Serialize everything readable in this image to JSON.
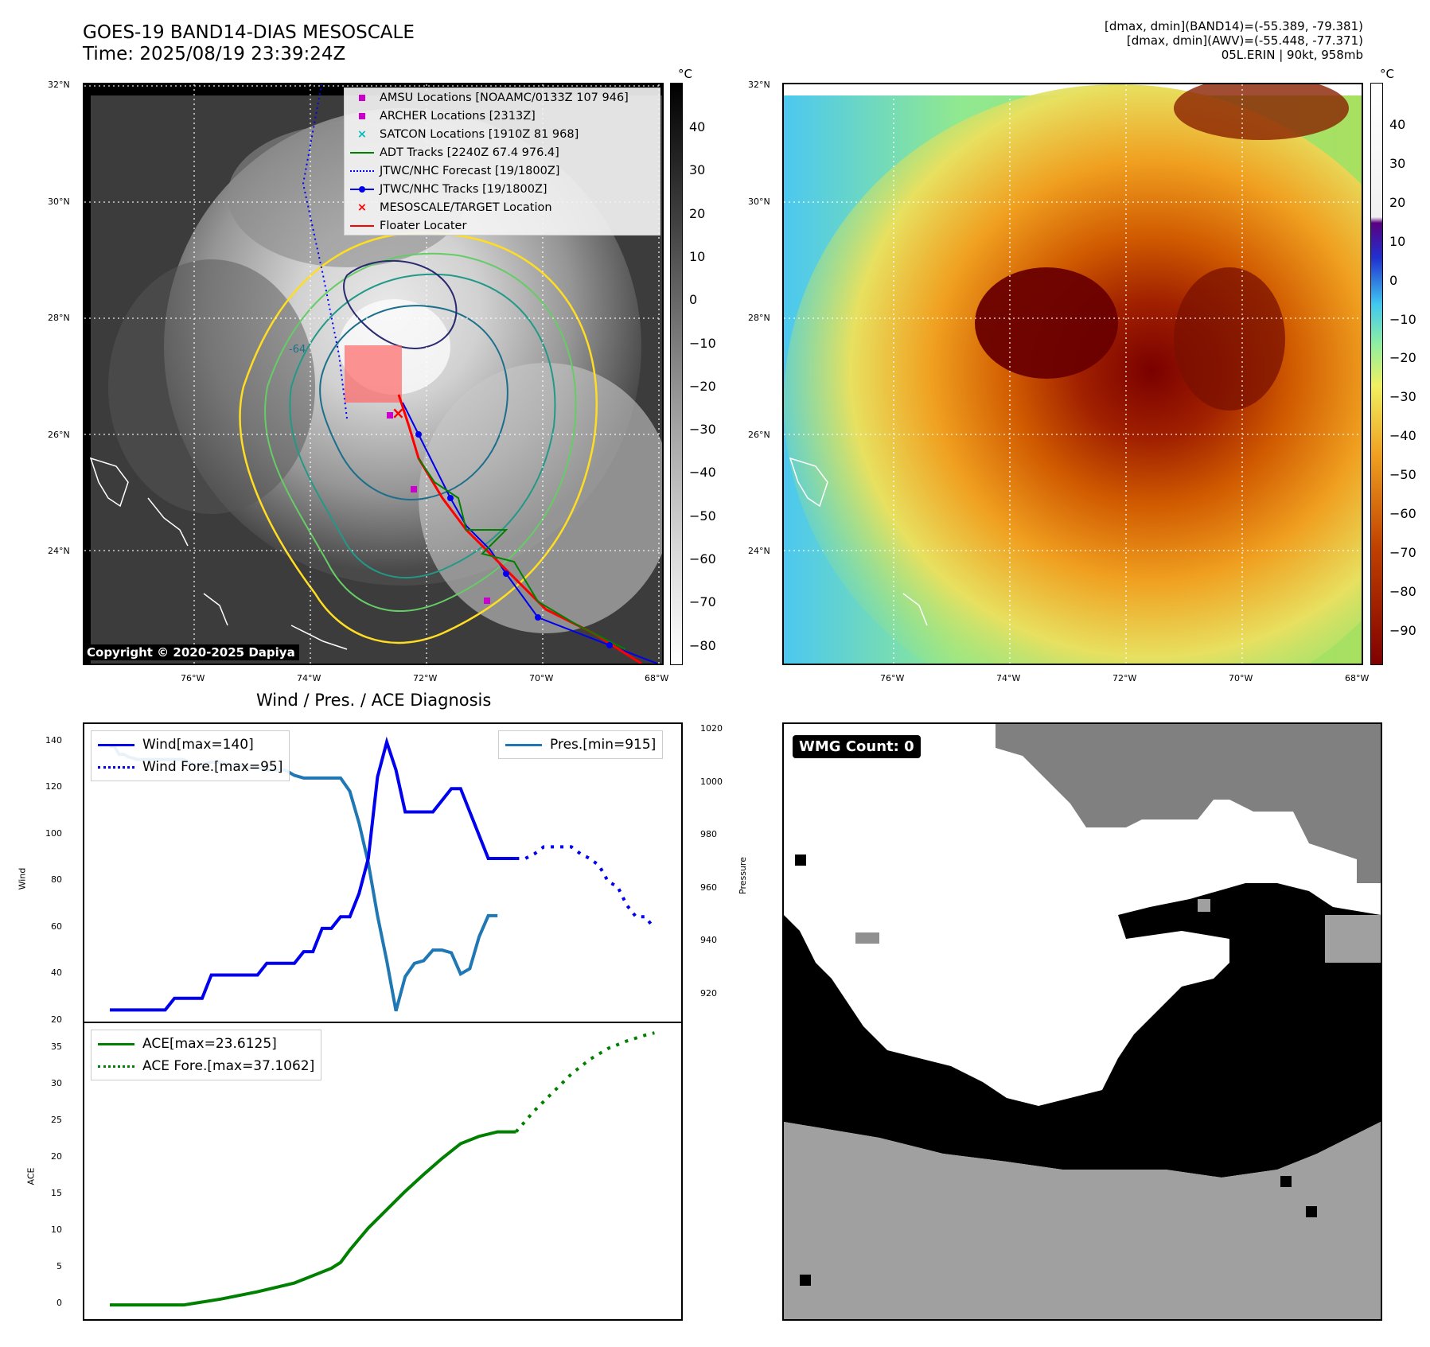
{
  "header": {
    "title_line1": "GOES-19 BAND14-DIAS MESOSCALE",
    "title_line2": "Time: 2025/08/19 23:39:24Z",
    "info_line1": "[dmax, dmin](BAND14)=(-55.389, -79.381)",
    "info_line2": "[dmax, dmin](AWV)=(-55.448, -77.371)",
    "info_line3": "05L.ERIN | 90kt, 958mb"
  },
  "map": {
    "lat_labels": [
      "32°N",
      "30°N",
      "28°N",
      "26°N",
      "24°N"
    ],
    "lon_labels": [
      "76°W",
      "74°W",
      "72°W",
      "70°W",
      "68°W"
    ],
    "copyright": "Copyright © 2020-2025 Dapiya",
    "contour_label": "-64"
  },
  "colorbar_left": {
    "unit": "°C",
    "ticks": [
      "40",
      "30",
      "20",
      "10",
      "0",
      "−10",
      "−20",
      "−30",
      "−40",
      "−50",
      "−60",
      "−70",
      "−80"
    ]
  },
  "colorbar_right": {
    "unit": "°C",
    "ticks": [
      "40",
      "30",
      "20",
      "10",
      "0",
      "−10",
      "−20",
      "−30",
      "−40",
      "−50",
      "−60",
      "−70",
      "−80",
      "−90"
    ]
  },
  "legend": {
    "amsu": "AMSU Locations [NOAAMC/0133Z 107 946]",
    "archer": "ARCHER Locations [2313Z]",
    "satcon": "SATCON Locations [1910Z 81 968]",
    "adt": "ADT Tracks [2240Z 67.4 976.4]",
    "forecast": "JTWC/NHC Forecast [19/1800Z]",
    "tracks": "JTWC/NHC Tracks [19/1800Z]",
    "target": "MESOSCALE/TARGET Location",
    "floater": "Floater Locater"
  },
  "colors": {
    "wind": "#0000ee",
    "pressure": "#1f77b4",
    "ace": "#008000",
    "target": "#ff0000",
    "amsu": "#cc00cc",
    "satcon": "#00bbbb"
  },
  "wmg": {
    "label": "WMG Count: 0"
  },
  "chart_data": [
    {
      "type": "line",
      "title": "Wind / Pres. / ACE Diagnosis",
      "ylabel": "Wind",
      "ylabel_right": "Pressure",
      "ylim": [
        20,
        145
      ],
      "ylim_right": [
        910,
        1020
      ],
      "yticks": [
        "140",
        "120",
        "100",
        "80",
        "60",
        "40",
        "20"
      ],
      "yticks_right": [
        "1020",
        "1000",
        "980",
        "960",
        "940",
        "920"
      ],
      "legend_wind": "Wind[max=140]",
      "legend_wind_fore": "Wind Fore.[max=95]",
      "legend_pres": "Pres.[min=915]",
      "series": [
        {
          "name": "Wind[max=140]",
          "axis": "left",
          "style": "solid",
          "x": [
            0,
            2,
            4,
            6,
            7,
            8,
            10,
            11,
            12,
            13,
            14,
            16,
            17,
            18,
            19,
            20,
            21,
            22,
            23,
            24,
            25,
            26,
            27,
            28,
            29,
            30,
            31,
            32,
            34,
            35,
            36,
            37,
            38,
            40,
            41,
            42,
            43,
            44
          ],
          "values": [
            25,
            25,
            25,
            25,
            30,
            30,
            30,
            40,
            40,
            40,
            40,
            40,
            45,
            45,
            45,
            45,
            50,
            50,
            60,
            60,
            65,
            65,
            75,
            90,
            125,
            140,
            128,
            110,
            110,
            110,
            115,
            120,
            120,
            100,
            90,
            90,
            90,
            90
          ]
        },
        {
          "name": "Wind Fore.[max=95]",
          "axis": "left",
          "style": "dotted",
          "x": [
            44,
            45,
            46,
            47,
            48,
            49,
            50,
            51,
            52,
            53,
            54,
            55,
            56,
            57,
            58,
            59
          ],
          "values": [
            90,
            90,
            92,
            95,
            95,
            95,
            95,
            92,
            90,
            87,
            80,
            78,
            70,
            65,
            65,
            60
          ]
        },
        {
          "name": "Pres.[min=915]",
          "axis": "right",
          "style": "solid",
          "x": [
            0,
            0.5,
            1,
            1.5,
            2,
            3,
            4,
            5,
            6,
            7,
            8,
            9,
            10,
            11,
            12,
            13,
            14,
            15,
            16,
            17,
            18,
            19,
            20,
            21,
            22,
            23,
            24,
            25,
            26,
            27,
            28,
            29,
            30,
            31,
            32,
            33,
            34,
            35,
            36,
            37,
            38,
            39,
            40,
            41,
            42
          ],
          "values": [
            1014,
            1014,
            1011,
            1011,
            1010,
            1009,
            1009,
            1009,
            1009,
            1009,
            1009,
            1007,
            1007,
            1008,
            1008,
            1007,
            1007,
            1006,
            1006,
            1005,
            1005,
            1005,
            1003,
            1002,
            1002,
            1002,
            1002,
            1002,
            997,
            985,
            970,
            950,
            933,
            914,
            927,
            932,
            933,
            937,
            937,
            936,
            928,
            930,
            942,
            950,
            950
          ]
        }
      ]
    },
    {
      "type": "line",
      "ylabel": "ACE",
      "ylim": [
        -1.5,
        38
      ],
      "yticks": [
        "35",
        "30",
        "25",
        "20",
        "15",
        "10",
        "5",
        "0"
      ],
      "legend_ace": "ACE[max=23.6125]",
      "legend_ace_fore": "ACE Fore.[max=37.1062]",
      "series": [
        {
          "name": "ACE[max=23.6125]",
          "style": "solid",
          "x": [
            0,
            4,
            8,
            12,
            16,
            20,
            22,
            24,
            25,
            26,
            27,
            28,
            30,
            32,
            34,
            36,
            38,
            40,
            42,
            44
          ],
          "values": [
            0,
            0,
            0,
            0.8,
            1.8,
            3.0,
            4.0,
            5.0,
            5.8,
            7.5,
            9.0,
            10.5,
            13.0,
            15.5,
            17.8,
            20.0,
            22.0,
            23.0,
            23.6125,
            23.6125
          ]
        },
        {
          "name": "ACE Fore.[max=37.1062]",
          "style": "dotted",
          "x": [
            44,
            46,
            48,
            50,
            52,
            54,
            56,
            58,
            59
          ],
          "values": [
            23.6125,
            26.5,
            29.0,
            31.5,
            33.5,
            35.0,
            36.0,
            36.8,
            37.1062
          ]
        }
      ]
    }
  ]
}
